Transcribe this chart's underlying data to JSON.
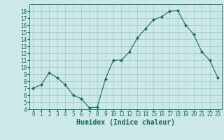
{
  "x": [
    0,
    1,
    2,
    3,
    4,
    5,
    6,
    7,
    8,
    9,
    10,
    11,
    12,
    13,
    14,
    15,
    16,
    17,
    18,
    19,
    20,
    21,
    22,
    23
  ],
  "y": [
    7,
    7.5,
    9.2,
    8.5,
    7.5,
    6,
    5.5,
    4.2,
    4.3,
    8.3,
    11,
    11,
    12.2,
    14.2,
    15.5,
    16.8,
    17.2,
    18.0,
    18.1,
    16.0,
    14.7,
    12.2,
    11,
    8.5
  ],
  "line_color": "#1a6b5a",
  "marker": "D",
  "marker_size": 2,
  "bg_color": "#cce8e8",
  "grid_color": "#99cccc",
  "xlabel": "Humidex (Indice chaleur)",
  "ylim": [
    4,
    19
  ],
  "xlim": [
    -0.5,
    23.5
  ],
  "yticks": [
    4,
    5,
    6,
    7,
    8,
    9,
    10,
    11,
    12,
    13,
    14,
    15,
    16,
    17,
    18
  ],
  "xticks": [
    0,
    1,
    2,
    3,
    4,
    5,
    6,
    7,
    8,
    9,
    10,
    11,
    12,
    13,
    14,
    15,
    16,
    17,
    18,
    19,
    20,
    21,
    22,
    23
  ],
  "tick_color": "#1a6b5a",
  "label_fontsize": 7,
  "tick_fontsize": 5.5
}
